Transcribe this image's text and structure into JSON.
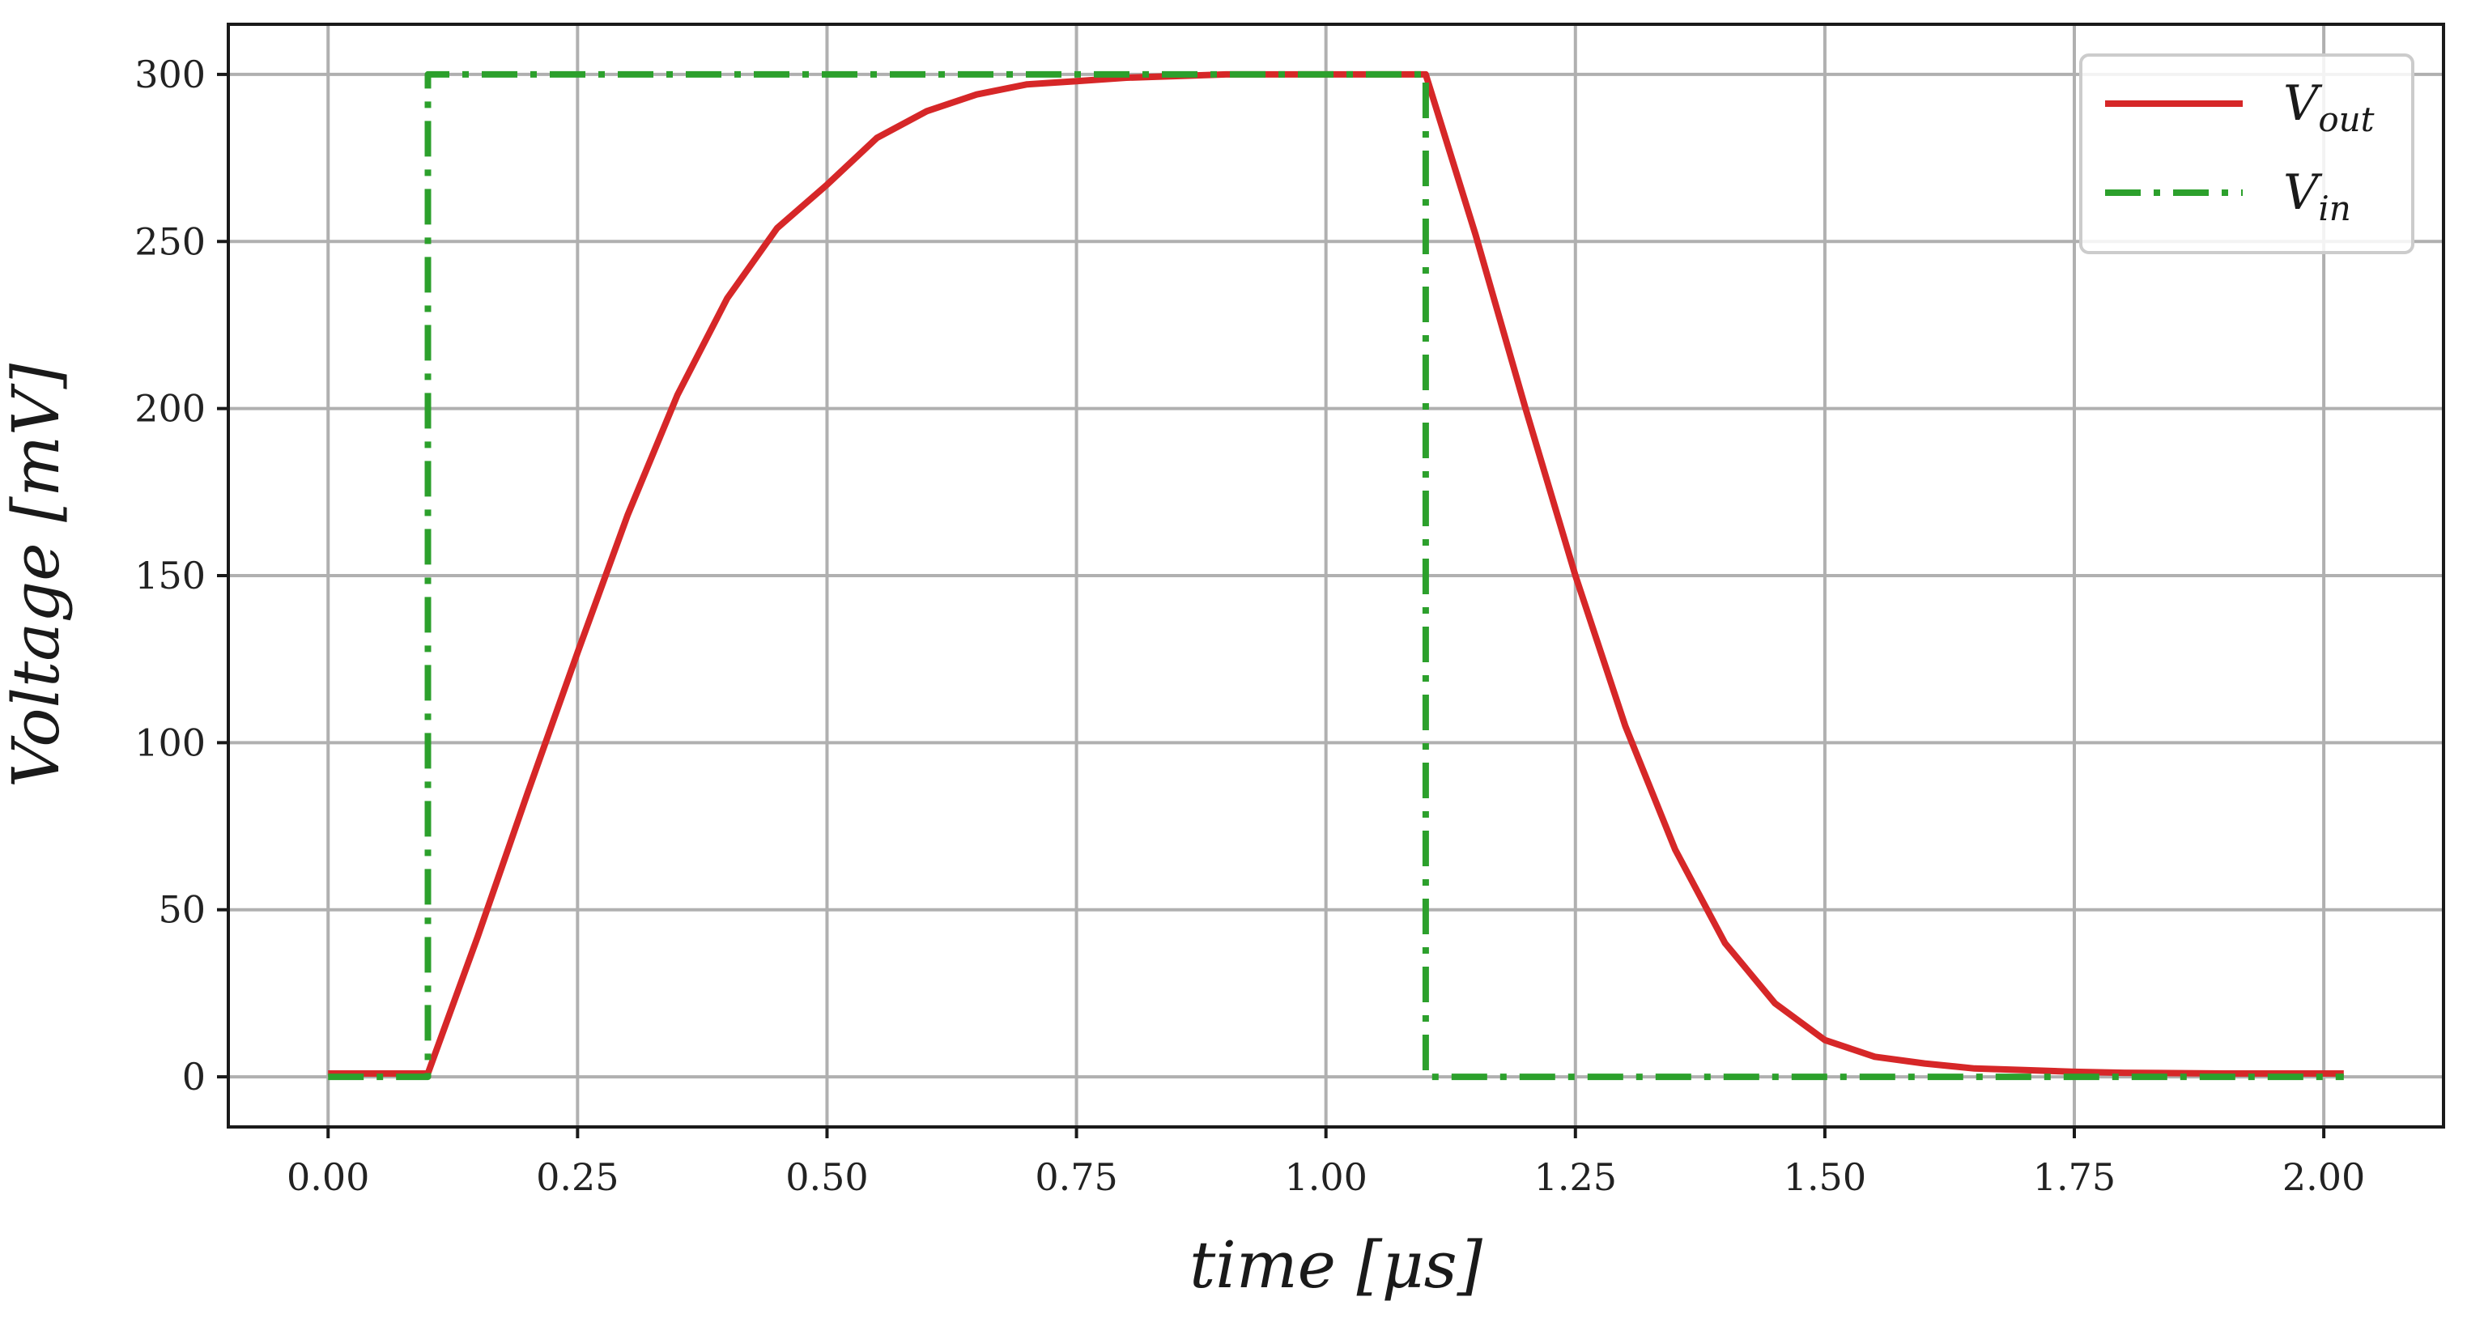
{
  "chart_data": {
    "type": "line",
    "xlabel": "time [μs]",
    "ylabel": "Voltage [mV]",
    "xlim": [
      -0.1,
      2.12
    ],
    "ylim": [
      -15,
      315
    ],
    "grid": true,
    "legend_position": "top-right",
    "x_ticks": [
      "0.00",
      "0.25",
      "0.50",
      "0.75",
      "1.00",
      "1.25",
      "1.50",
      "1.75",
      "2.00"
    ],
    "y_ticks": [
      "0",
      "50",
      "100",
      "150",
      "200",
      "250",
      "300"
    ],
    "series": [
      {
        "name": "V_out",
        "label_main": "V",
        "label_sub": "out",
        "color": "#d62728",
        "style": "solid",
        "x": [
          0.0,
          0.1,
          0.15,
          0.2,
          0.25,
          0.3,
          0.35,
          0.4,
          0.45,
          0.5,
          0.55,
          0.6,
          0.65,
          0.7,
          0.75,
          0.8,
          0.85,
          0.9,
          0.95,
          1.0,
          1.05,
          1.1,
          1.15,
          1.2,
          1.25,
          1.3,
          1.35,
          1.4,
          1.45,
          1.5,
          1.55,
          1.6,
          1.65,
          1.7,
          1.75,
          1.8,
          1.9,
          2.02
        ],
        "y": [
          1,
          1,
          42,
          85,
          127,
          168,
          204,
          233,
          254,
          267,
          281,
          289,
          294,
          297,
          298,
          299,
          299.5,
          300,
          300,
          300,
          300,
          300,
          252,
          200,
          150,
          105,
          68,
          40,
          22,
          11,
          6,
          4,
          2.5,
          2,
          1.5,
          1.2,
          1,
          1
        ]
      },
      {
        "name": "V_in",
        "label_main": "V",
        "label_sub": "in",
        "color": "#2ca02c",
        "style": "dashdot",
        "x": [
          0.0,
          0.1,
          0.1,
          1.1,
          1.1,
          2.02
        ],
        "y": [
          0,
          0,
          300,
          300,
          0,
          0
        ]
      }
    ]
  }
}
